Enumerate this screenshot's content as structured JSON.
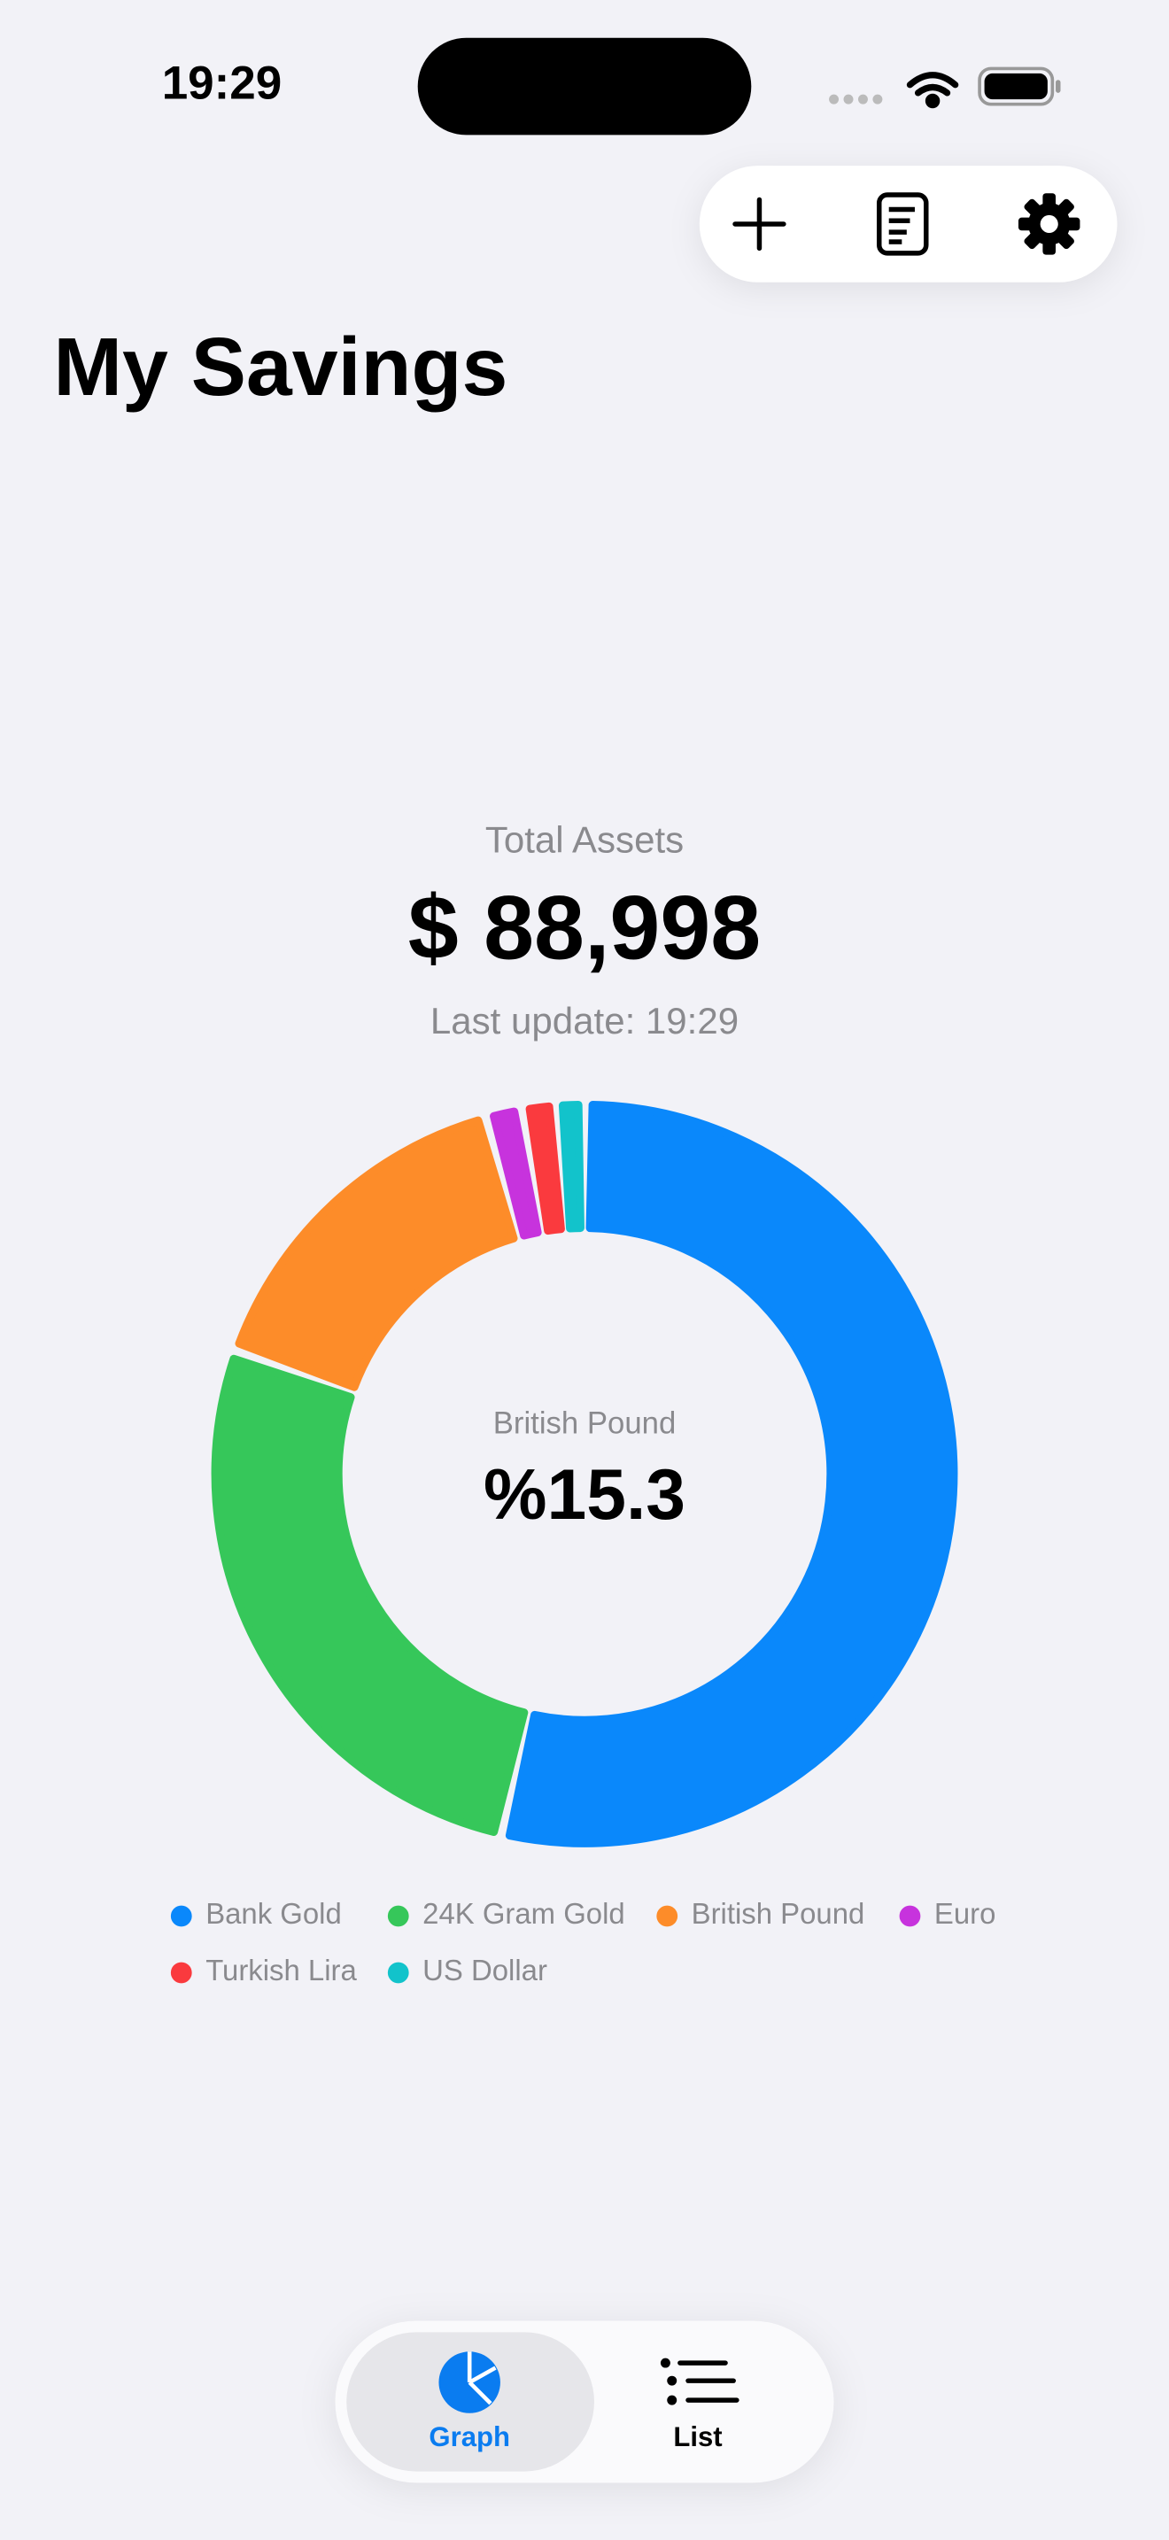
{
  "status_bar": {
    "time": "19:29"
  },
  "header": {
    "title": "My Savings"
  },
  "summary": {
    "label": "Total Assets",
    "value": "$ 88,998",
    "last_update": "Last update: 19:29"
  },
  "chart_data": {
    "type": "donut",
    "categories": [
      "Bank Gold",
      "24K Gram Gold",
      "British Pound",
      "Euro",
      "Turkish Lira",
      "US Dollar"
    ],
    "values": [
      53.6,
      26.8,
      15.3,
      1.6,
      1.5,
      1.2
    ],
    "colors": [
      "#0a88fb",
      "#36c75a",
      "#fd8c29",
      "#c733dd",
      "#fa3a3e",
      "#12c3cb"
    ],
    "center_label": "British Pound",
    "center_value_label": "%15.3"
  },
  "tab_bar": {
    "tabs": [
      "Graph",
      "List"
    ]
  }
}
